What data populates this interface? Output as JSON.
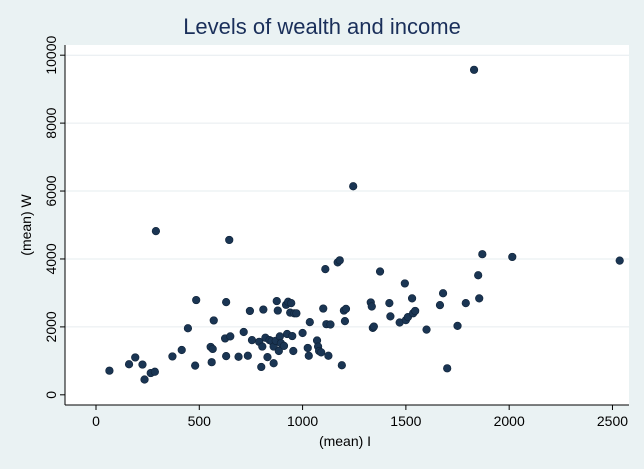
{
  "chart_data": {
    "type": "scatter",
    "title": "Levels of wealth and income",
    "xlabel": "(mean) I",
    "ylabel": "(mean) W",
    "xlim": [
      -150,
      2580
    ],
    "ylim": [
      -300,
      10300
    ],
    "xticks": [
      0,
      500,
      1000,
      1500,
      2000,
      2500
    ],
    "yticks": [
      0,
      2000,
      4000,
      6000,
      8000,
      10000
    ],
    "grid": true,
    "legend": "none",
    "marker_color": "#1a3553",
    "points": [
      [
        65,
        710
      ],
      [
        160,
        900
      ],
      [
        190,
        1100
      ],
      [
        225,
        890
      ],
      [
        235,
        450
      ],
      [
        265,
        640
      ],
      [
        285,
        680
      ],
      [
        290,
        4820
      ],
      [
        370,
        1130
      ],
      [
        415,
        1320
      ],
      [
        445,
        1960
      ],
      [
        480,
        860
      ],
      [
        485,
        2790
      ],
      [
        555,
        1410
      ],
      [
        560,
        960
      ],
      [
        565,
        1350
      ],
      [
        570,
        2190
      ],
      [
        625,
        1660
      ],
      [
        630,
        1140
      ],
      [
        630,
        2730
      ],
      [
        650,
        1720
      ],
      [
        645,
        4560
      ],
      [
        690,
        1120
      ],
      [
        715,
        1850
      ],
      [
        735,
        1150
      ],
      [
        745,
        2470
      ],
      [
        755,
        1610
      ],
      [
        790,
        1560
      ],
      [
        800,
        820
      ],
      [
        805,
        1420
      ],
      [
        810,
        2510
      ],
      [
        820,
        1680
      ],
      [
        830,
        1110
      ],
      [
        840,
        1610
      ],
      [
        850,
        1580
      ],
      [
        860,
        1420
      ],
      [
        860,
        930
      ],
      [
        870,
        1590
      ],
      [
        875,
        2760
      ],
      [
        880,
        2480
      ],
      [
        885,
        1290
      ],
      [
        890,
        1720
      ],
      [
        895,
        1520
      ],
      [
        910,
        1440
      ],
      [
        920,
        2650
      ],
      [
        925,
        1790
      ],
      [
        930,
        2740
      ],
      [
        940,
        2420
      ],
      [
        945,
        2700
      ],
      [
        950,
        1730
      ],
      [
        955,
        1290
      ],
      [
        960,
        2400
      ],
      [
        970,
        2400
      ],
      [
        1000,
        1820
      ],
      [
        1025,
        1380
      ],
      [
        1035,
        2140
      ],
      [
        1030,
        1150
      ],
      [
        1070,
        1600
      ],
      [
        1075,
        1420
      ],
      [
        1080,
        1290
      ],
      [
        1090,
        1250
      ],
      [
        1100,
        2540
      ],
      [
        1110,
        3700
      ],
      [
        1115,
        2080
      ],
      [
        1125,
        1150
      ],
      [
        1135,
        2070
      ],
      [
        1170,
        3900
      ],
      [
        1180,
        3960
      ],
      [
        1190,
        870
      ],
      [
        1200,
        2480
      ],
      [
        1205,
        2170
      ],
      [
        1210,
        2530
      ],
      [
        1245,
        6140
      ],
      [
        1330,
        2720
      ],
      [
        1335,
        2600
      ],
      [
        1340,
        1970
      ],
      [
        1345,
        2010
      ],
      [
        1375,
        3630
      ],
      [
        1420,
        2700
      ],
      [
        1425,
        2310
      ],
      [
        1470,
        2130
      ],
      [
        1495,
        3280
      ],
      [
        1500,
        2200
      ],
      [
        1510,
        2290
      ],
      [
        1530,
        2840
      ],
      [
        1535,
        2400
      ],
      [
        1545,
        2470
      ],
      [
        1600,
        1920
      ],
      [
        1665,
        2640
      ],
      [
        1680,
        2990
      ],
      [
        1700,
        780
      ],
      [
        1750,
        2030
      ],
      [
        1790,
        2700
      ],
      [
        1830,
        9570
      ],
      [
        1850,
        3520
      ],
      [
        1855,
        2840
      ],
      [
        1870,
        4140
      ],
      [
        2015,
        4060
      ],
      [
        2535,
        3950
      ]
    ]
  }
}
